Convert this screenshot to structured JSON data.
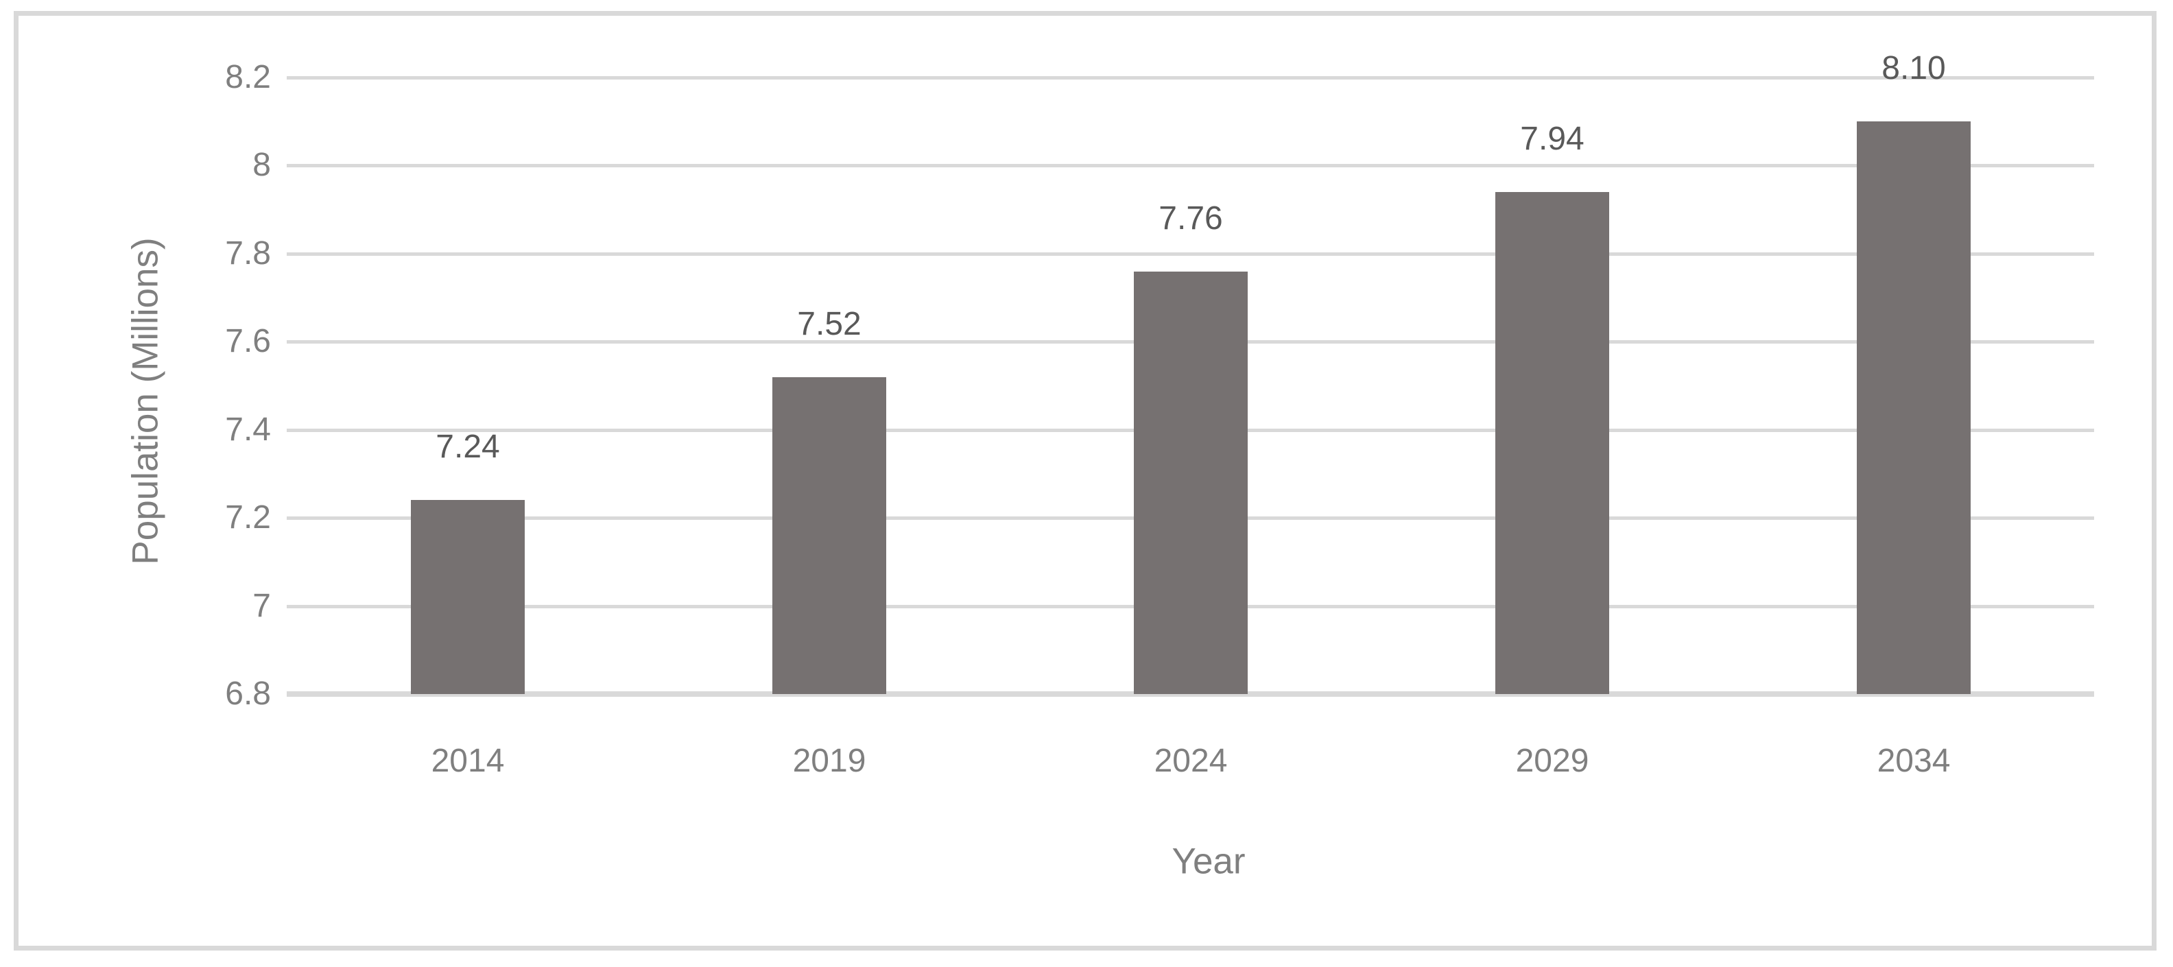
{
  "chart_data": {
    "type": "bar",
    "title": "",
    "categories": [
      "2014",
      "2019",
      "2024",
      "2029",
      "2034"
    ],
    "values": [
      7.24,
      7.52,
      7.76,
      7.94,
      8.1
    ],
    "labels": [
      "7.24",
      "7.52",
      "7.76",
      "7.94",
      "8.10"
    ],
    "series_name": "Population",
    "xlabel": "Year",
    "ylabel": "Population (Millions)",
    "ylim": [
      6.8,
      8.2
    ],
    "ytick_step": 0.2,
    "yticks_top_to_bottom": [
      "8.2",
      "8",
      "7.8",
      "7.6",
      "7.4",
      "7.2",
      "7",
      "6.8"
    ],
    "grid": true,
    "legend_position": "none"
  },
  "colors": {
    "bar_fill": "#767171",
    "gridline": "#d9d9d9",
    "axis_line": "#d9d9d9",
    "frame_border": "#d9d9d9",
    "tick_text": "#7f7f7f",
    "axis_title_text": "#7f7f7f",
    "data_label_text": "#595959",
    "background": "#ffffff"
  }
}
